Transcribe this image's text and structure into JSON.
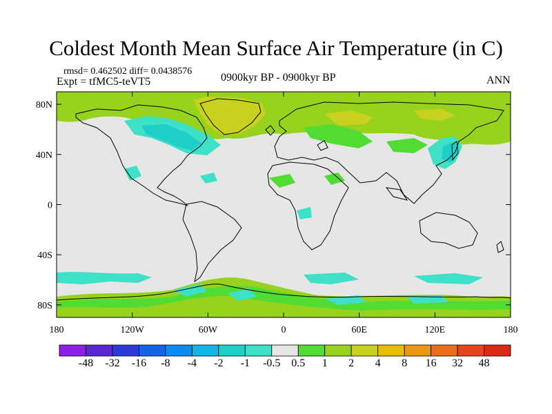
{
  "title": "Coldest Month Mean Surface Air Temperature (in C)",
  "stats_line": "rmsd= 0.462502 diff= 0.0438576",
  "experiment_line": "Expt = tfMC5-teVT5",
  "period_label": "0900kyr BP - 0900kyr BP",
  "season_label": "ANN",
  "lat_axis": {
    "labels": [
      "80N",
      "40N",
      "0",
      "40S",
      "80S"
    ],
    "values": [
      80,
      40,
      0,
      -40,
      -80
    ],
    "range": [
      -90,
      90
    ]
  },
  "lon_axis": {
    "labels": [
      "180",
      "120W",
      "60W",
      "0",
      "60E",
      "120E",
      "180"
    ],
    "values": [
      -180,
      -120,
      -60,
      0,
      60,
      120,
      180
    ],
    "range": [
      -180,
      180
    ]
  },
  "colorbar": {
    "labels": [
      "-48",
      "-32",
      "-16",
      "-8",
      "-4",
      "-2",
      "-1",
      "-0.5",
      "0.5",
      "1",
      "2",
      "4",
      "8",
      "16",
      "32",
      "48"
    ],
    "colors": [
      "#8c1ee6",
      "#5a28d2",
      "#2d3cd7",
      "#1464e6",
      "#0a8cf0",
      "#14b4e6",
      "#1ecfc8",
      "#3ee0c8",
      "#e6e6e6",
      "#50dc32",
      "#96d21e",
      "#c8d21e",
      "#e6be0a",
      "#eb9614",
      "#eb6e1e",
      "#e6461e",
      "#dc2814"
    ]
  },
  "legend_colors": {
    "no_change": "#e6e6e6",
    "coast": "#000000"
  }
}
